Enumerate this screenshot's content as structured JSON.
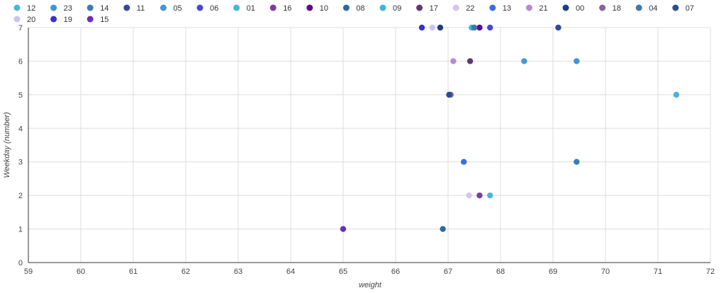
{
  "chart_data": {
    "type": "scatter",
    "xlabel": "weight",
    "ylabel": "Weekday (number)",
    "xlim": [
      59,
      72
    ],
    "ylim": [
      0,
      7
    ],
    "x_ticks": [
      59,
      60,
      61,
      62,
      63,
      64,
      65,
      66,
      67,
      68,
      69,
      70,
      71,
      72
    ],
    "y_ticks": [
      0,
      1,
      2,
      3,
      4,
      5,
      6,
      7
    ],
    "grid": true,
    "legend_position": "top",
    "series": [
      {
        "name": "12",
        "color": "#4db6d6",
        "points": [
          [
            67.8,
            2
          ]
        ]
      },
      {
        "name": "23",
        "color": "#3f94d6",
        "points": [
          [
            69.45,
            6
          ]
        ]
      },
      {
        "name": "14",
        "color": "#3b7ab8",
        "points": [
          [
            69.45,
            3
          ]
        ]
      },
      {
        "name": "11",
        "color": "#2e4b9c",
        "points": [
          [
            69.1,
            7
          ]
        ]
      },
      {
        "name": "05",
        "color": "#4596dc",
        "points": [
          [
            68.45,
            6
          ]
        ]
      },
      {
        "name": "06",
        "color": "#4a47d6",
        "points": [
          [
            67.8,
            7
          ]
        ]
      },
      {
        "name": "01",
        "color": "#46b4dc",
        "points": [
          [
            71.35,
            5
          ]
        ]
      },
      {
        "name": "16",
        "color": "#7b3e9c",
        "points": [
          [
            67.6,
            2
          ]
        ]
      },
      {
        "name": "10",
        "color": "#5c0c8c",
        "points": [
          [
            67.6,
            7
          ]
        ]
      },
      {
        "name": "08",
        "color": "#2c6aa0",
        "points": [
          [
            66.9,
            1
          ]
        ]
      },
      {
        "name": "09",
        "color": "#45b0e0",
        "points": [
          [
            67.45,
            7
          ]
        ]
      },
      {
        "name": "17",
        "color": "#5e3a6e",
        "points": [
          [
            67.42,
            6
          ]
        ]
      },
      {
        "name": "22",
        "color": "#d9c4ee",
        "points": [
          [
            67.4,
            2
          ]
        ]
      },
      {
        "name": "13",
        "color": "#3c6fdb",
        "points": [
          [
            67.3,
            3
          ]
        ]
      },
      {
        "name": "21",
        "color": "#b48ccc",
        "points": [
          [
            67.1,
            6
          ]
        ]
      },
      {
        "name": "00",
        "color": "#1e3c84",
        "points": [
          [
            66.85,
            7
          ]
        ]
      },
      {
        "name": "18",
        "color": "#86649c",
        "points": [
          [
            67.05,
            5
          ]
        ]
      },
      {
        "name": "04",
        "color": "#3d7aa8",
        "points": [
          [
            67.5,
            7
          ]
        ]
      },
      {
        "name": "07",
        "color": "#2a4d8f",
        "points": [
          [
            67.02,
            5
          ]
        ]
      },
      {
        "name": "20",
        "color": "#cbc4f0",
        "points": [
          [
            66.7,
            7
          ]
        ]
      },
      {
        "name": "19",
        "color": "#3534c7",
        "points": [
          [
            66.5,
            7
          ]
        ]
      },
      {
        "name": "15",
        "color": "#6a2dbf",
        "points": [
          [
            65.0,
            1
          ]
        ]
      }
    ]
  }
}
